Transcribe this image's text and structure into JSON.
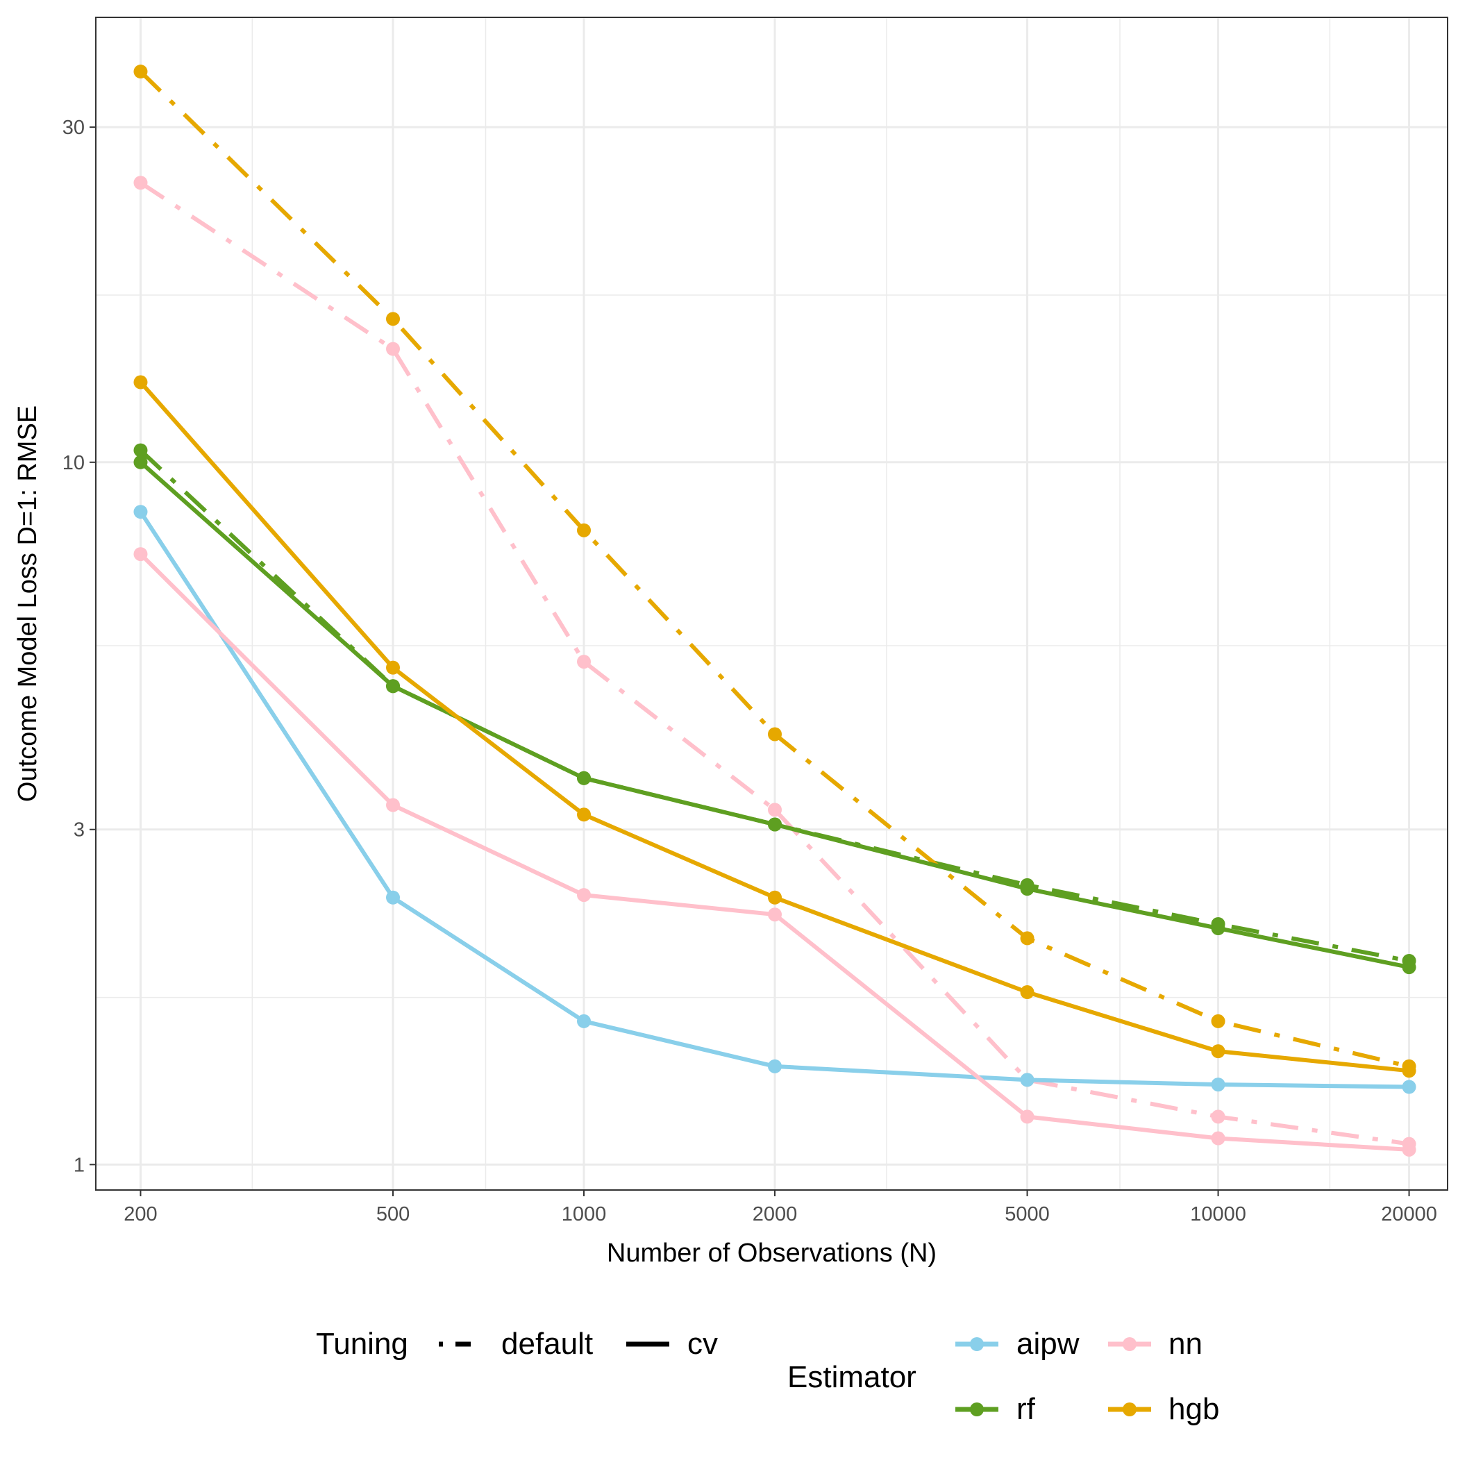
{
  "chart_data": {
    "type": "line",
    "xlabel": "Number of Observations (N)",
    "ylabel": "Outcome Model Loss D=1: RMSE",
    "x_scale": "log",
    "y_scale": "log",
    "xlim": [
      170,
      23000
    ],
    "ylim": [
      0.92,
      43
    ],
    "x_ticks": [
      200,
      500,
      1000,
      2000,
      5000,
      10000,
      20000
    ],
    "x_tick_labels": [
      "200",
      "500",
      "1000",
      "2000",
      "5000",
      "10000",
      "20000"
    ],
    "y_ticks": [
      1,
      3,
      10,
      30
    ],
    "y_tick_labels": [
      "1",
      "3",
      "10",
      "30"
    ],
    "x_minor_ticks": [
      300,
      700,
      3000,
      7000,
      15000
    ],
    "y_minor_ticks": [
      1.73,
      5.48,
      17.3
    ],
    "grid": true,
    "legend_position": "bottom",
    "x": [
      200,
      500,
      1000,
      2000,
      5000,
      10000,
      20000
    ],
    "legend": {
      "tuning_title": "Tuning",
      "tuning_entries": [
        {
          "key": "default",
          "label": "default",
          "dash": "dotdash"
        },
        {
          "key": "cv",
          "label": "cv",
          "dash": "solid"
        }
      ],
      "estimator_title": "Estimator",
      "estimator_entries": [
        {
          "key": "aipw",
          "label": "aipw"
        },
        {
          "key": "nn",
          "label": "nn"
        },
        {
          "key": "rf",
          "label": "rf"
        },
        {
          "key": "hgb",
          "label": "hgb"
        }
      ]
    },
    "series": [
      {
        "estimator": "aipw",
        "tuning": "cv",
        "color": "#89CFEA",
        "values": [
          8.5,
          2.4,
          1.6,
          1.38,
          1.32,
          1.3,
          1.29
        ]
      },
      {
        "estimator": "nn",
        "tuning": "default",
        "color": "#FFC0CB",
        "values": [
          25,
          14.5,
          5.2,
          3.2,
          1.32,
          1.17,
          1.07
        ]
      },
      {
        "estimator": "nn",
        "tuning": "cv",
        "color": "#FFC0CB",
        "values": [
          7.4,
          3.25,
          2.42,
          2.27,
          1.17,
          1.09,
          1.05
        ]
      },
      {
        "estimator": "rf",
        "tuning": "default",
        "color": "#5E9F21",
        "values": [
          10.4,
          4.8,
          3.55,
          3.05,
          2.5,
          2.2,
          1.95
        ]
      },
      {
        "estimator": "rf",
        "tuning": "cv",
        "color": "#5E9F21",
        "values": [
          10,
          4.8,
          3.55,
          3.05,
          2.47,
          2.17,
          1.91
        ]
      },
      {
        "estimator": "hgb",
        "tuning": "default",
        "color": "#E6A800",
        "values": [
          36,
          16,
          8,
          4.1,
          2.1,
          1.6,
          1.38
        ]
      },
      {
        "estimator": "hgb",
        "tuning": "cv",
        "color": "#E6A800",
        "values": [
          13,
          5.1,
          3.15,
          2.4,
          1.76,
          1.45,
          1.36
        ]
      }
    ]
  }
}
